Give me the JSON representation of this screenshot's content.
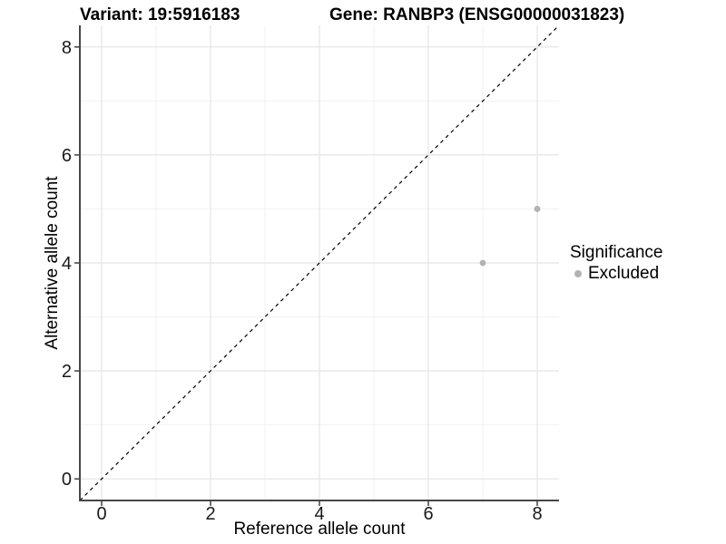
{
  "chart_data": {
    "type": "scatter",
    "title_left": "Variant: 19:5916183",
    "title_right": "Gene: RANBP3 (ENSG00000031823)",
    "xlabel": "Reference allele count",
    "ylabel": "Alternative allele count",
    "xlim": [
      -0.4,
      8.4
    ],
    "ylim": [
      -0.4,
      8.4
    ],
    "x_major_ticks": [
      0,
      2,
      4,
      6,
      8
    ],
    "x_minor_ticks": [
      1,
      3,
      5,
      7
    ],
    "y_major_ticks": [
      0,
      2,
      4,
      6,
      8
    ],
    "y_minor_ticks": [
      1,
      3,
      5,
      7
    ],
    "series": [
      {
        "name": "Excluded",
        "color": "#b3b3b3",
        "points": [
          {
            "x": 7,
            "y": 4
          },
          {
            "x": 8,
            "y": 5
          }
        ]
      }
    ],
    "reference_line": {
      "kind": "identity (y = x)",
      "style": "dashed",
      "color": "#000000"
    },
    "legend": {
      "title": "Significance",
      "position": "right",
      "entries": [
        {
          "label": "Excluded",
          "color": "#b3b3b3"
        }
      ]
    },
    "grid": {
      "major_color": "#e4e4e4",
      "minor_color": "#f2f2f2"
    },
    "axis_color": "#474747",
    "tick_label_color": "#1a1a1a"
  }
}
